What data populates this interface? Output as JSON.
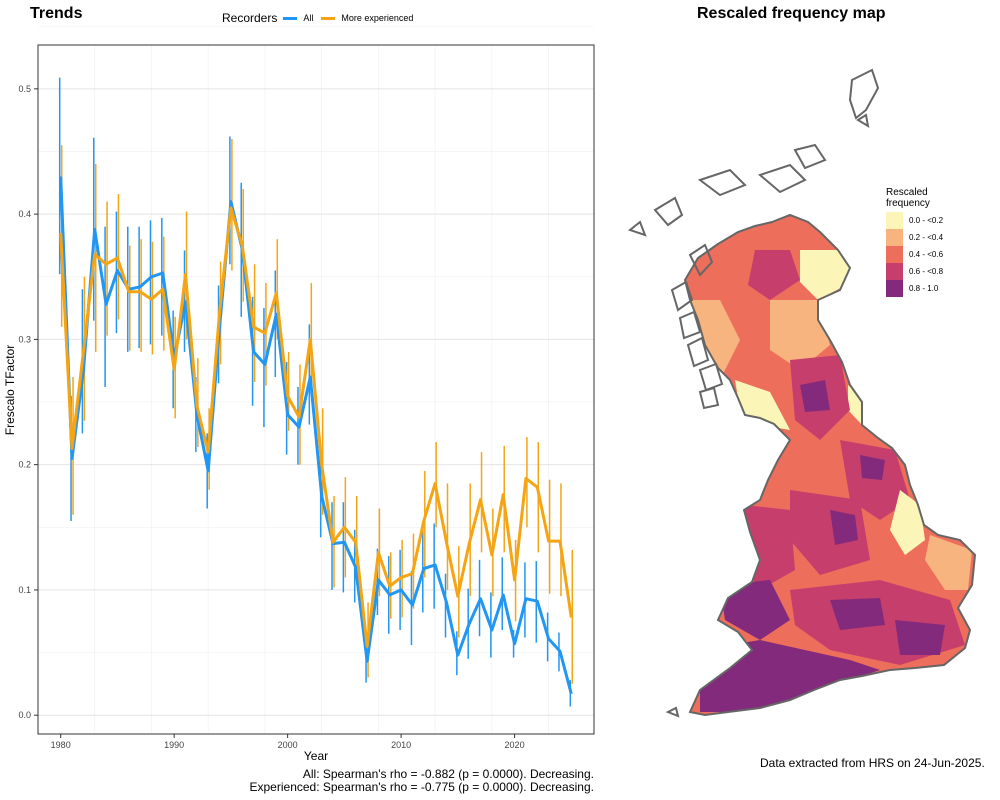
{
  "trends": {
    "title": "Trends"
  },
  "chart_data": {
    "type": "line",
    "xlabel": "Year",
    "ylabel": "Frescalo TFactor",
    "xlim": [
      1978,
      2027
    ],
    "ylim": [
      -0.015,
      0.535
    ],
    "x_ticks": [
      1980,
      1990,
      2000,
      2010,
      2020
    ],
    "y_ticks": [
      0.0,
      0.1,
      0.2,
      0.3,
      0.4,
      0.5
    ],
    "y_tick_labels": [
      "0.0",
      "0.1",
      "0.2",
      "0.3",
      "0.4",
      "0.5"
    ],
    "grid": true,
    "legend": {
      "title": "Recorders",
      "position": "top"
    },
    "series": [
      {
        "name": "All",
        "color": "#2196f3",
        "x": [
          1980,
          1981,
          1982,
          1983,
          1984,
          1985,
          1986,
          1987,
          1988,
          1989,
          1990,
          1991,
          1992,
          1993,
          1994,
          1995,
          1996,
          1997,
          1998,
          1999,
          2000,
          2001,
          2002,
          2003,
          2004,
          2005,
          2006,
          2007,
          2008,
          2009,
          2010,
          2011,
          2012,
          2013,
          2014,
          2015,
          2016,
          2017,
          2018,
          2019,
          2020,
          2021,
          2022,
          2023,
          2024,
          2025
        ],
        "y": [
          0.43,
          0.205,
          0.275,
          0.388,
          0.328,
          0.355,
          0.34,
          0.342,
          0.35,
          0.353,
          0.285,
          0.33,
          0.24,
          0.195,
          0.31,
          0.41,
          0.372,
          0.29,
          0.28,
          0.32,
          0.24,
          0.23,
          0.27,
          0.175,
          0.137,
          0.138,
          0.118,
          0.043,
          0.108,
          0.096,
          0.1,
          0.088,
          0.117,
          0.12,
          0.09,
          0.048,
          0.073,
          0.093,
          0.068,
          0.096,
          0.057,
          0.093,
          0.091,
          0.061,
          0.051,
          0.017
        ],
        "lower": [
          0.352,
          0.155,
          0.225,
          0.315,
          0.262,
          0.305,
          0.29,
          0.293,
          0.296,
          0.303,
          0.245,
          0.29,
          0.21,
          0.165,
          0.265,
          0.36,
          0.318,
          0.247,
          0.23,
          0.27,
          0.208,
          0.2,
          0.232,
          0.142,
          0.1,
          0.098,
          0.09,
          0.026,
          0.08,
          0.065,
          0.068,
          0.056,
          0.082,
          0.085,
          0.062,
          0.032,
          0.045,
          0.063,
          0.046,
          0.068,
          0.046,
          0.062,
          0.058,
          0.043,
          0.035,
          0.007
        ],
        "upper": [
          0.509,
          0.255,
          0.34,
          0.461,
          0.39,
          0.402,
          0.39,
          0.39,
          0.395,
          0.397,
          0.323,
          0.371,
          0.27,
          0.225,
          0.343,
          0.462,
          0.425,
          0.334,
          0.325,
          0.355,
          0.282,
          0.262,
          0.312,
          0.21,
          0.17,
          0.17,
          0.148,
          0.059,
          0.133,
          0.127,
          0.132,
          0.115,
          0.15,
          0.153,
          0.113,
          0.067,
          0.101,
          0.124,
          0.098,
          0.126,
          0.068,
          0.122,
          0.123,
          0.082,
          0.066,
          0.028
        ]
      },
      {
        "name": "More experienced",
        "color": "#f5a414",
        "x": [
          1980,
          1981,
          1982,
          1983,
          1984,
          1985,
          1986,
          1987,
          1988,
          1989,
          1990,
          1991,
          1992,
          1993,
          1994,
          1995,
          1996,
          1997,
          1998,
          1999,
          2000,
          2001,
          2002,
          2003,
          2004,
          2005,
          2006,
          2007,
          2008,
          2009,
          2010,
          2011,
          2012,
          2013,
          2014,
          2015,
          2016,
          2017,
          2018,
          2019,
          2020,
          2021,
          2022,
          2023,
          2024,
          2025
        ],
        "y": [
          0.385,
          0.213,
          0.29,
          0.368,
          0.36,
          0.365,
          0.338,
          0.338,
          0.332,
          0.34,
          0.276,
          0.352,
          0.247,
          0.21,
          0.322,
          0.405,
          0.375,
          0.31,
          0.305,
          0.337,
          0.255,
          0.238,
          0.3,
          0.2,
          0.138,
          0.15,
          0.138,
          0.055,
          0.13,
          0.103,
          0.11,
          0.113,
          0.155,
          0.185,
          0.138,
          0.095,
          0.137,
          0.172,
          0.128,
          0.176,
          0.108,
          0.189,
          0.182,
          0.139,
          0.139,
          0.078
        ],
        "lower": [
          0.31,
          0.16,
          0.235,
          0.29,
          0.303,
          0.316,
          0.291,
          0.29,
          0.288,
          0.291,
          0.237,
          0.3,
          0.214,
          0.18,
          0.28,
          0.355,
          0.33,
          0.266,
          0.263,
          0.3,
          0.227,
          0.2,
          0.255,
          0.16,
          0.102,
          0.11,
          0.104,
          0.03,
          0.095,
          0.077,
          0.078,
          0.085,
          0.11,
          0.15,
          0.1,
          0.062,
          0.095,
          0.13,
          0.095,
          0.13,
          0.075,
          0.15,
          0.13,
          0.097,
          0.095,
          0.025
        ],
        "upper": [
          0.455,
          0.27,
          0.35,
          0.44,
          0.41,
          0.416,
          0.375,
          0.38,
          0.378,
          0.382,
          0.318,
          0.402,
          0.285,
          0.245,
          0.362,
          0.46,
          0.42,
          0.36,
          0.345,
          0.38,
          0.29,
          0.28,
          0.345,
          0.245,
          0.175,
          0.19,
          0.175,
          0.09,
          0.165,
          0.13,
          0.14,
          0.145,
          0.195,
          0.218,
          0.185,
          0.135,
          0.185,
          0.21,
          0.165,
          0.215,
          0.14,
          0.222,
          0.218,
          0.188,
          0.185,
          0.132
        ]
      }
    ]
  },
  "stats": {
    "line1": "All: Spearman's rho = -0.882 (p = 0.0000). Decreasing.",
    "line2": "Experienced: Spearman's rho = -0.775 (p = 0.0000). Decreasing."
  },
  "map": {
    "title": "Rescaled frequency map",
    "legend_title": "Rescaled\nfrequency",
    "legend_items": [
      {
        "label": "0.0 - <0.2",
        "color": "#fbf6b8"
      },
      {
        "label": "0.2 - <0.4",
        "color": "#f8b47f"
      },
      {
        "label": "0.4 - <0.6",
        "color": "#ee6e5c"
      },
      {
        "label": "0.6 - <0.8",
        "color": "#c63e6c"
      },
      {
        "label": "0.8 - 1.0",
        "color": "#832a7c"
      }
    ],
    "outline_color": "#666666"
  },
  "footnote": "Data extracted from HRS on 24-Jun-2025."
}
